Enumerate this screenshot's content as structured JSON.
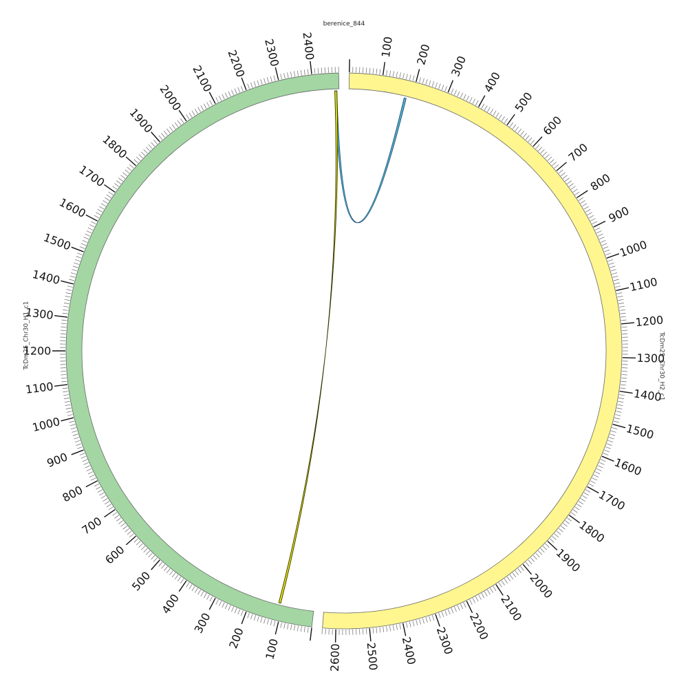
{
  "title": "berenice_844",
  "sequences": [
    {
      "name": "TcDm25_Chr30_H2_c1",
      "length": 2640,
      "color": "#fff68f",
      "stroke": "#666666",
      "label_color": "#333333"
    },
    {
      "name": "TcDm25_Chr30_H1_c1",
      "length": 2480,
      "color": "#a3d6a3",
      "stroke": "#666666",
      "label_color": "#333333"
    }
  ],
  "tick_interval": 100,
  "minor_tick_interval": 10,
  "links": [
    {
      "seq1": "TcDm25_Chr30_H2_c1",
      "pos1": 180,
      "seq2": "TcDm25_Chr30_H1_c1",
      "pos2": 2470,
      "color": "#1f4e79",
      "fill": "#56b4c8"
    },
    {
      "seq1": "TcDm25_Chr30_H1_c1",
      "pos1": 2470,
      "seq2": "TcDm25_Chr30_H1_c1",
      "pos2": 110,
      "color": "#333300",
      "fill": "#e6e600"
    }
  ]
}
